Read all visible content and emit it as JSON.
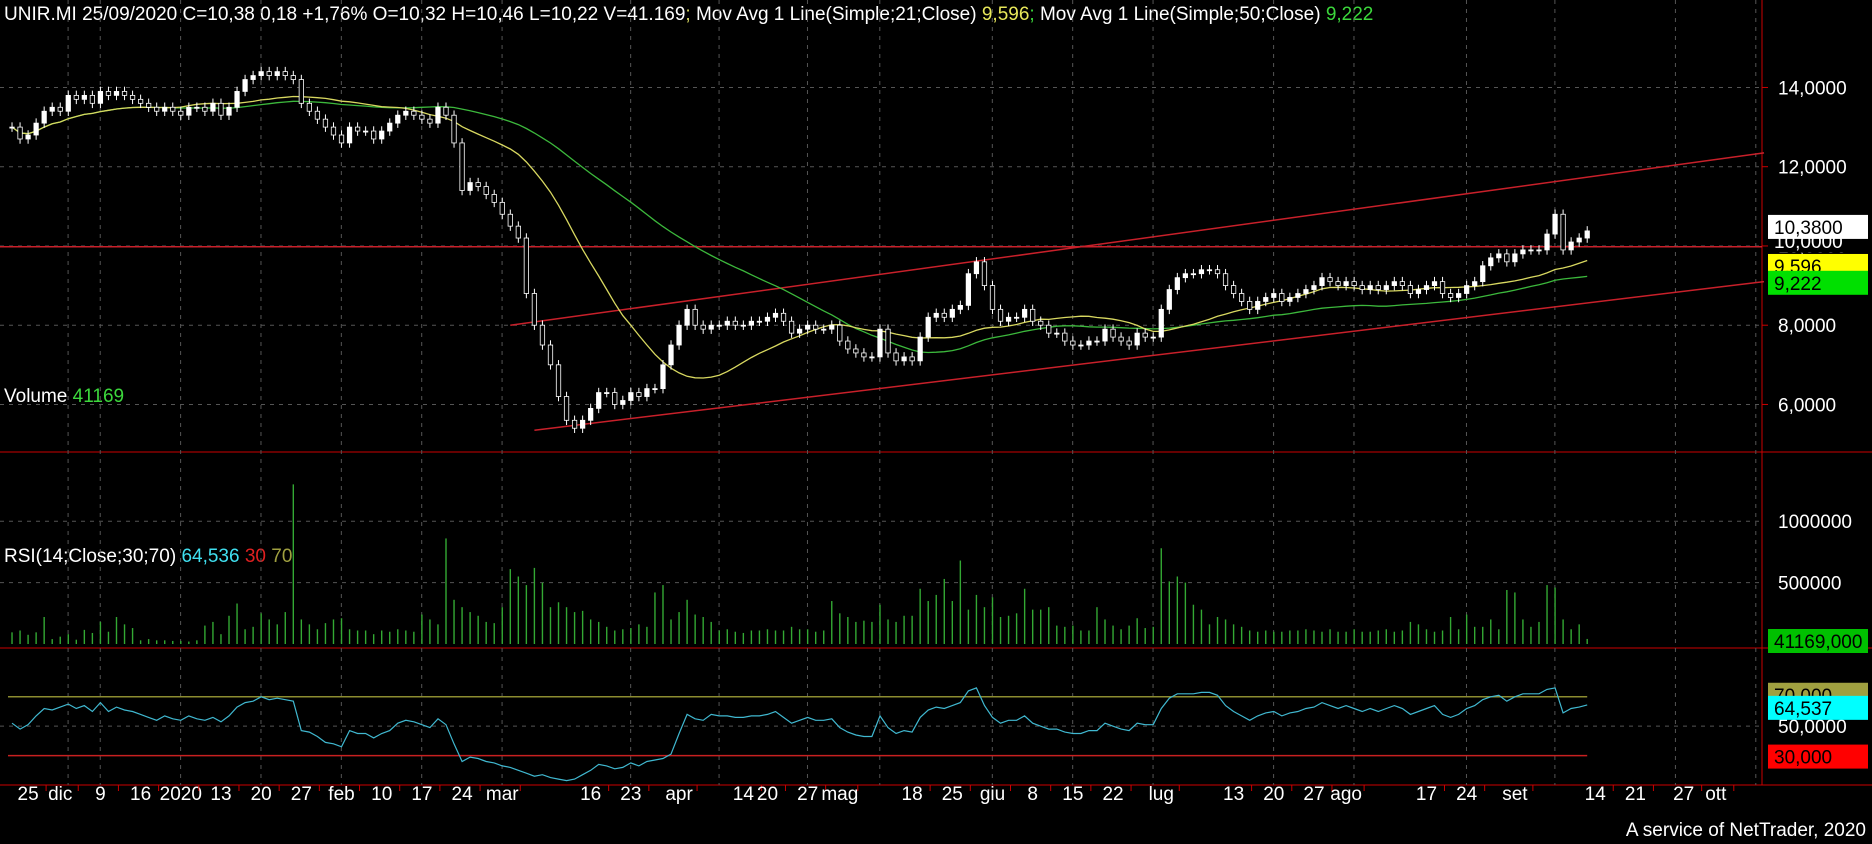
{
  "header": {
    "symbol": "UNIR.MI",
    "date": "25/09/2020",
    "close_text": "C=10,38",
    "change": "0,18",
    "change_pct": "+1,76%",
    "open_text": "O=10,32",
    "high_text": "H=10,46",
    "low_text": "L=10,22",
    "volume_text": "V=41.169",
    "ma21_label": "Mov Avg 1 Line(Simple;21;Close)",
    "ma21_value": "9,596",
    "ma50_label": "Mov Avg 1 Line(Simple;50;Close)",
    "ma50_value": "9,222"
  },
  "volume_panel": {
    "label": "Volume",
    "value": "41169",
    "last_tag": "41169,000"
  },
  "rsi_panel": {
    "label": "RSI(14;Close;30;70)",
    "value": "64,536",
    "low": "30",
    "high": "70",
    "tag_value": "64,537",
    "tag_low": "30,000",
    "tag_high": "70,000"
  },
  "price_tags": {
    "last": "10,3800",
    "hline": "10,0000",
    "ma21": "9,596",
    "ma50": "9,222"
  },
  "footer": "A service of NetTrader, 2020",
  "colors": {
    "up": "#ffffff",
    "down": "#ffffff",
    "ma21": "#d8d860",
    "ma50": "#3cb83c",
    "channel": "#c8202a",
    "grid": "#555555",
    "volume": "#33a833",
    "rsi": "#40b8d0",
    "rsi_low": "#c82020",
    "rsi_high": "#8c8c30"
  },
  "chart_data": {
    "type": "candlestick",
    "price_axis": {
      "ticks": [
        "6,0000",
        "8,0000",
        "10,0000",
        "12,0000",
        "14,0000"
      ],
      "tick_values": [
        6,
        8,
        10,
        12,
        14
      ],
      "ylim": [
        4.8,
        15.4
      ]
    },
    "volume_axis": {
      "ticks": [
        "500000",
        "1000000"
      ],
      "tick_values": [
        500000,
        1000000
      ],
      "ylim": [
        0,
        1450000
      ]
    },
    "rsi_axis": {
      "ticks": [
        "50,0000"
      ],
      "tick_values": [
        50
      ],
      "ylim": [
        10,
        95
      ]
    },
    "x_labels": [
      "25",
      "dic",
      "9",
      "16",
      "2020",
      "13",
      "20",
      "27",
      "feb",
      "10",
      "17",
      "24",
      "mar",
      "16",
      "23",
      "apr",
      "14",
      "20",
      "27",
      "mag",
      "18",
      "25",
      "giu",
      "8",
      "15",
      "22",
      "lug",
      "13",
      "20",
      "27",
      "ago",
      "17",
      "24",
      "set",
      "14",
      "21",
      "27",
      "ott"
    ],
    "x_label_idx": [
      2,
      6,
      11,
      16,
      21,
      26,
      31,
      36,
      41,
      46,
      51,
      56,
      61,
      72,
      77,
      83,
      91,
      94,
      99,
      103,
      112,
      117,
      122,
      127,
      132,
      137,
      143,
      152,
      157,
      162,
      166,
      176,
      181,
      187,
      197,
      202,
      208,
      212
    ],
    "closes": [
      13.0,
      12.7,
      12.8,
      13.1,
      13.4,
      13.5,
      13.4,
      13.8,
      13.7,
      13.8,
      13.6,
      13.9,
      13.8,
      13.9,
      13.8,
      13.7,
      13.6,
      13.5,
      13.4,
      13.5,
      13.4,
      13.3,
      13.5,
      13.5,
      13.4,
      13.6,
      13.3,
      13.5,
      13.9,
      14.2,
      14.3,
      14.4,
      14.3,
      14.4,
      14.3,
      14.2,
      13.6,
      13.4,
      13.2,
      13.0,
      12.8,
      12.6,
      13.0,
      12.9,
      12.9,
      12.7,
      12.9,
      13.1,
      13.3,
      13.4,
      13.3,
      13.2,
      13.1,
      13.5,
      13.3,
      12.6,
      11.4,
      11.6,
      11.5,
      11.3,
      11.1,
      10.8,
      10.5,
      10.2,
      8.8,
      8.0,
      7.5,
      7.0,
      6.2,
      5.6,
      5.4,
      5.6,
      5.9,
      6.3,
      6.3,
      6.0,
      6.1,
      6.3,
      6.2,
      6.4,
      6.4,
      7.0,
      7.5,
      8.0,
      8.4,
      8.0,
      7.9,
      8.0,
      8.0,
      8.1,
      8.0,
      8.0,
      8.1,
      8.1,
      8.2,
      8.3,
      8.1,
      7.8,
      7.9,
      8.0,
      7.9,
      7.9,
      8.0,
      7.6,
      7.4,
      7.3,
      7.2,
      7.2,
      7.9,
      7.3,
      7.1,
      7.2,
      7.1,
      7.7,
      8.2,
      8.3,
      8.2,
      8.4,
      8.5,
      9.3,
      9.6,
      9.0,
      8.4,
      8.1,
      8.2,
      8.2,
      8.4,
      8.1,
      8.0,
      7.8,
      7.8,
      7.6,
      7.5,
      7.5,
      7.6,
      7.6,
      7.9,
      7.7,
      7.6,
      7.5,
      7.8,
      7.7,
      7.7,
      8.4,
      8.9,
      9.2,
      9.3,
      9.3,
      9.4,
      9.4,
      9.3,
      9.0,
      8.8,
      8.6,
      8.4,
      8.6,
      8.7,
      8.8,
      8.6,
      8.7,
      8.8,
      8.9,
      9.0,
      9.2,
      9.1,
      9.0,
      9.1,
      9.0,
      8.9,
      9.0,
      8.9,
      9.0,
      9.1,
      9.0,
      8.8,
      8.9,
      9.0,
      9.1,
      8.8,
      8.7,
      8.8,
      9.0,
      9.1,
      9.5,
      9.7,
      9.8,
      9.6,
      9.8,
      9.9,
      9.9,
      9.9,
      10.3,
      10.8,
      9.9,
      10.1,
      10.2,
      10.38
    ],
    "volumes": [
      95000,
      110000,
      75000,
      95000,
      220000,
      40000,
      60000,
      80000,
      35000,
      115000,
      90000,
      180000,
      100000,
      220000,
      160000,
      130000,
      30000,
      40000,
      30000,
      30000,
      25000,
      25000,
      20000,
      30000,
      150000,
      180000,
      80000,
      230000,
      330000,
      120000,
      140000,
      250000,
      200000,
      160000,
      260000,
      1300000,
      200000,
      160000,
      120000,
      170000,
      200000,
      210000,
      120000,
      110000,
      110000,
      80000,
      110000,
      100000,
      120000,
      110000,
      100000,
      240000,
      200000,
      160000,
      860000,
      360000,
      300000,
      260000,
      230000,
      180000,
      170000,
      300000,
      610000,
      550000,
      480000,
      620000,
      500000,
      300000,
      340000,
      300000,
      260000,
      270000,
      200000,
      180000,
      140000,
      110000,
      120000,
      130000,
      160000,
      140000,
      420000,
      480000,
      200000,
      260000,
      360000,
      240000,
      220000,
      180000,
      110000,
      120000,
      100000,
      90000,
      110000,
      110000,
      120000,
      110000,
      110000,
      140000,
      120000,
      120000,
      100000,
      110000,
      350000,
      250000,
      220000,
      180000,
      190000,
      180000,
      320000,
      200000,
      180000,
      230000,
      230000,
      450000,
      350000,
      400000,
      530000,
      350000,
      680000,
      280000,
      400000,
      300000,
      380000,
      220000,
      230000,
      250000,
      450000,
      280000,
      280000,
      300000,
      150000,
      140000,
      150000,
      110000,
      110000,
      300000,
      200000,
      150000,
      120000,
      150000,
      210000,
      130000,
      140000,
      780000,
      510000,
      550000,
      500000,
      320000,
      280000,
      160000,
      220000,
      200000,
      160000,
      140000,
      110000,
      100000,
      110000,
      100000,
      100000,
      110000,
      110000,
      120000,
      110000,
      100000,
      120000,
      100000,
      100000,
      120000,
      100000,
      100000,
      110000,
      120000,
      100000,
      110000,
      180000,
      160000,
      120000,
      100000,
      110000,
      220000,
      120000,
      240000,
      140000,
      140000,
      200000,
      120000,
      440000,
      420000,
      200000,
      140000,
      180000,
      480000,
      460000,
      200000,
      120000,
      160000,
      41169
    ],
    "rsi": [
      52,
      48,
      51,
      57,
      62,
      61,
      63,
      65,
      62,
      64,
      60,
      66,
      60,
      63,
      61,
      60,
      58,
      56,
      54,
      57,
      55,
      54,
      57,
      55,
      54,
      56,
      53,
      57,
      63,
      66,
      67,
      70,
      68,
      69,
      68,
      67,
      47,
      46,
      43,
      39,
      38,
      36,
      47,
      45,
      45,
      42,
      45,
      47,
      52,
      54,
      53,
      51,
      49,
      55,
      51,
      38,
      26,
      29,
      28,
      26,
      25,
      23,
      22,
      20,
      18,
      16,
      17,
      15,
      14,
      13,
      14,
      17,
      20,
      24,
      23,
      21,
      22,
      25,
      23,
      26,
      27,
      28,
      31,
      45,
      58,
      55,
      54,
      58,
      57,
      57,
      56,
      56,
      57,
      57,
      58,
      60,
      56,
      52,
      54,
      56,
      54,
      54,
      55,
      49,
      46,
      44,
      43,
      43,
      57,
      49,
      45,
      47,
      46,
      56,
      61,
      63,
      62,
      64,
      66,
      74,
      76,
      64,
      56,
      52,
      54,
      54,
      57,
      52,
      50,
      48,
      48,
      46,
      45,
      45,
      47,
      47,
      52,
      50,
      48,
      47,
      52,
      51,
      51,
      62,
      69,
      72,
      72,
      72,
      73,
      73,
      71,
      64,
      60,
      57,
      54,
      57,
      59,
      60,
      57,
      59,
      60,
      62,
      63,
      66,
      64,
      62,
      64,
      62,
      60,
      62,
      60,
      62,
      64,
      62,
      58,
      60,
      62,
      64,
      58,
      56,
      58,
      62,
      64,
      68,
      70,
      71,
      67,
      70,
      72,
      72,
      72,
      75,
      76,
      59,
      62,
      63,
      64.5
    ]
  }
}
